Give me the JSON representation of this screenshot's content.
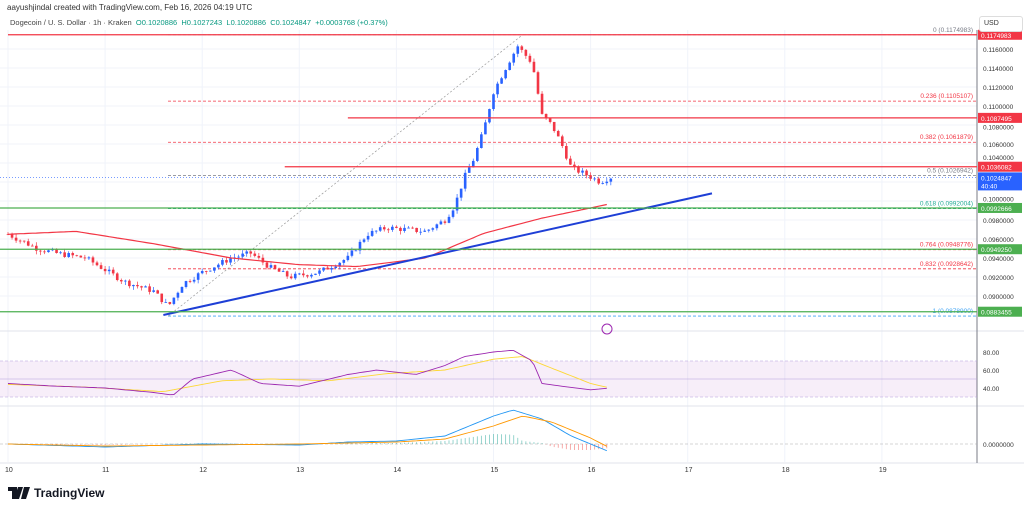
{
  "header": {
    "credit": "aayushjindal created with TradingView.com, Feb 16, 2026 04:19 UTC"
  },
  "legend": {
    "symbol": "Dogecoin / U. S. Dollar · 1h · Kraken",
    "open": "O0.1020886",
    "high": "H0.1027243",
    "low": "L0.1020886",
    "close": "C0.1024847",
    "change": "+0.0003768 (+0.37%)"
  },
  "currency": "USD",
  "logo": "TradingView",
  "colors": {
    "up": "#2962ff",
    "down": "#f23645",
    "ma": "#f23645",
    "trend": "#1e3fd6",
    "green": "#4caf50",
    "rsi": "#9c27b0",
    "signal": "#fdd835",
    "macd": "#2196f3",
    "macd_signal": "#ff9800"
  },
  "chart_data": {
    "type": "candlestick",
    "x_ticks": [
      "10",
      "11",
      "12",
      "13",
      "14",
      "15",
      "16",
      "17",
      "18",
      "19"
    ],
    "price_ticks": [
      "0.1160000",
      "0.1140000",
      "0.1120000",
      "0.1100000",
      "0.1080000",
      "0.1060000",
      "0.1040000",
      "0.1000000",
      "0.0980000",
      "0.0960000",
      "0.0940000",
      "0.0920000",
      "0.0900000"
    ],
    "price_path": [
      [
        10,
        0.0965
      ],
      [
        10.3,
        0.095
      ],
      [
        10.5,
        0.0945
      ],
      [
        10.8,
        0.094
      ],
      [
        11.2,
        0.0915
      ],
      [
        11.5,
        0.0905
      ],
      [
        11.65,
        0.0889
      ],
      [
        11.8,
        0.0913
      ],
      [
        12,
        0.0925
      ],
      [
        12.3,
        0.094
      ],
      [
        12.5,
        0.0945
      ],
      [
        12.7,
        0.093
      ],
      [
        12.9,
        0.092
      ],
      [
        13.2,
        0.0925
      ],
      [
        13.5,
        0.094
      ],
      [
        13.7,
        0.0965
      ],
      [
        13.9,
        0.0972
      ],
      [
        14.3,
        0.0968
      ],
      [
        14.5,
        0.098
      ],
      [
        14.6,
        0.0995
      ],
      [
        14.7,
        0.1025
      ],
      [
        14.8,
        0.1045
      ],
      [
        14.9,
        0.1075
      ],
      [
        15,
        0.1115
      ],
      [
        15.15,
        0.1145
      ],
      [
        15.25,
        0.1163
      ],
      [
        15.4,
        0.1145
      ],
      [
        15.5,
        0.109
      ],
      [
        15.6,
        0.108
      ],
      [
        15.7,
        0.106
      ],
      [
        15.8,
        0.1035
      ],
      [
        15.95,
        0.1028
      ],
      [
        16.1,
        0.102
      ],
      [
        16.2,
        0.1025
      ]
    ],
    "ma_path": [
      [
        10,
        0.0965
      ],
      [
        10.7,
        0.0968
      ],
      [
        11.5,
        0.0955
      ],
      [
        12.3,
        0.094
      ],
      [
        13,
        0.0933
      ],
      [
        13.6,
        0.0931
      ],
      [
        14.3,
        0.094
      ],
      [
        14.9,
        0.0966
      ],
      [
        15.5,
        0.0982
      ],
      [
        16.2,
        0.0997
      ]
    ],
    "trendline": [
      [
        11.6,
        0.088
      ],
      [
        17.25,
        0.1008
      ]
    ],
    "fib": [
      {
        "level": "0",
        "price": 0.1174983,
        "label": "0 (0.1174983)",
        "color": "#787b86"
      },
      {
        "level": "0.236",
        "price": 0.1105107,
        "label": "0.236 (0.1105107)",
        "color": "#f23645"
      },
      {
        "level": "0.382",
        "price": 0.1061879,
        "label": "0.382 (0.1061879)",
        "color": "#f23645"
      },
      {
        "level": "0.5",
        "price": 0.1026942,
        "label": "0.5 (0.1026942)",
        "color": "#787b86"
      },
      {
        "level": "0.618",
        "price": 0.0992004,
        "label": "0.618 (0.0992004)",
        "color": "#22ab94"
      },
      {
        "level": "0.764",
        "price": 0.0948776,
        "label": "0.764 (0.0948776)",
        "color": "#f23645"
      },
      {
        "level": "0.832",
        "price": 0.0928642,
        "label": "0.832 (0.0928642)",
        "color": "#f23645"
      },
      {
        "level": "1",
        "price": 0.08789,
        "label": "1 (0.0878900)",
        "color": "#42a5f5"
      }
    ],
    "levels": [
      {
        "price": 0.1174983,
        "label": "0.1174983",
        "color": "#f23645",
        "from": 10
      },
      {
        "price": 0.1087495,
        "label": "0.1087495",
        "color": "#f23645",
        "from": 13.5
      },
      {
        "price": 0.1036082,
        "label": "0.1036082",
        "color": "#f23645",
        "from": 12.85
      },
      {
        "price": 0.0992666,
        "label": "0.0992666",
        "color": "#4caf50",
        "from": 9.9
      },
      {
        "price": 0.094925,
        "label": "0.0949250",
        "color": "#4caf50",
        "from": 9.9
      },
      {
        "price": 0.0883455,
        "label": "0.0883455",
        "color": "#4caf50",
        "from": 9.9
      }
    ],
    "last_price": {
      "label": "0.1024847",
      "countdown": "40:40",
      "price": 0.1024847
    },
    "rsi": {
      "ticks": [
        "80.00",
        "60.00",
        "40.00"
      ],
      "path": [
        [
          10,
          45
        ],
        [
          10.5,
          42
        ],
        [
          11,
          40
        ],
        [
          11.5,
          35
        ],
        [
          11.7,
          32
        ],
        [
          11.9,
          50
        ],
        [
          12.3,
          60
        ],
        [
          12.6,
          45
        ],
        [
          13,
          42
        ],
        [
          13.5,
          55
        ],
        [
          13.8,
          60
        ],
        [
          14.2,
          55
        ],
        [
          14.5,
          65
        ],
        [
          14.7,
          75
        ],
        [
          15,
          80
        ],
        [
          15.2,
          82
        ],
        [
          15.4,
          70
        ],
        [
          15.5,
          45
        ],
        [
          15.7,
          42
        ],
        [
          16,
          38
        ],
        [
          16.2,
          40
        ]
      ],
      "signal": [
        [
          10,
          44
        ],
        [
          10.8,
          41
        ],
        [
          11.6,
          36
        ],
        [
          12.2,
          48
        ],
        [
          12.7,
          50
        ],
        [
          13.3,
          48
        ],
        [
          13.9,
          56
        ],
        [
          14.5,
          60
        ],
        [
          15,
          72
        ],
        [
          15.3,
          75
        ],
        [
          15.6,
          62
        ],
        [
          16,
          45
        ],
        [
          16.2,
          40
        ]
      ]
    },
    "macd": {
      "ticks": [
        "0.0000000"
      ],
      "line": [
        [
          10,
          0
        ],
        [
          11,
          -0.0003
        ],
        [
          12,
          0
        ],
        [
          13,
          -0.0001
        ],
        [
          13.5,
          0.0002
        ],
        [
          14,
          0.0003
        ],
        [
          14.5,
          0.0008
        ],
        [
          15,
          0.0028
        ],
        [
          15.2,
          0.0034
        ],
        [
          15.5,
          0.0025
        ],
        [
          15.8,
          0.0008
        ],
        [
          16.2,
          -0.0008
        ]
      ],
      "signal": [
        [
          10,
          0
        ],
        [
          11,
          -0.0002
        ],
        [
          12,
          -0.0001
        ],
        [
          13,
          0
        ],
        [
          14,
          0.0002
        ],
        [
          14.5,
          0.0005
        ],
        [
          15,
          0.0018
        ],
        [
          15.3,
          0.0028
        ],
        [
          15.6,
          0.0022
        ],
        [
          16,
          0.0006
        ],
        [
          16.2,
          -0.0004
        ]
      ]
    }
  }
}
